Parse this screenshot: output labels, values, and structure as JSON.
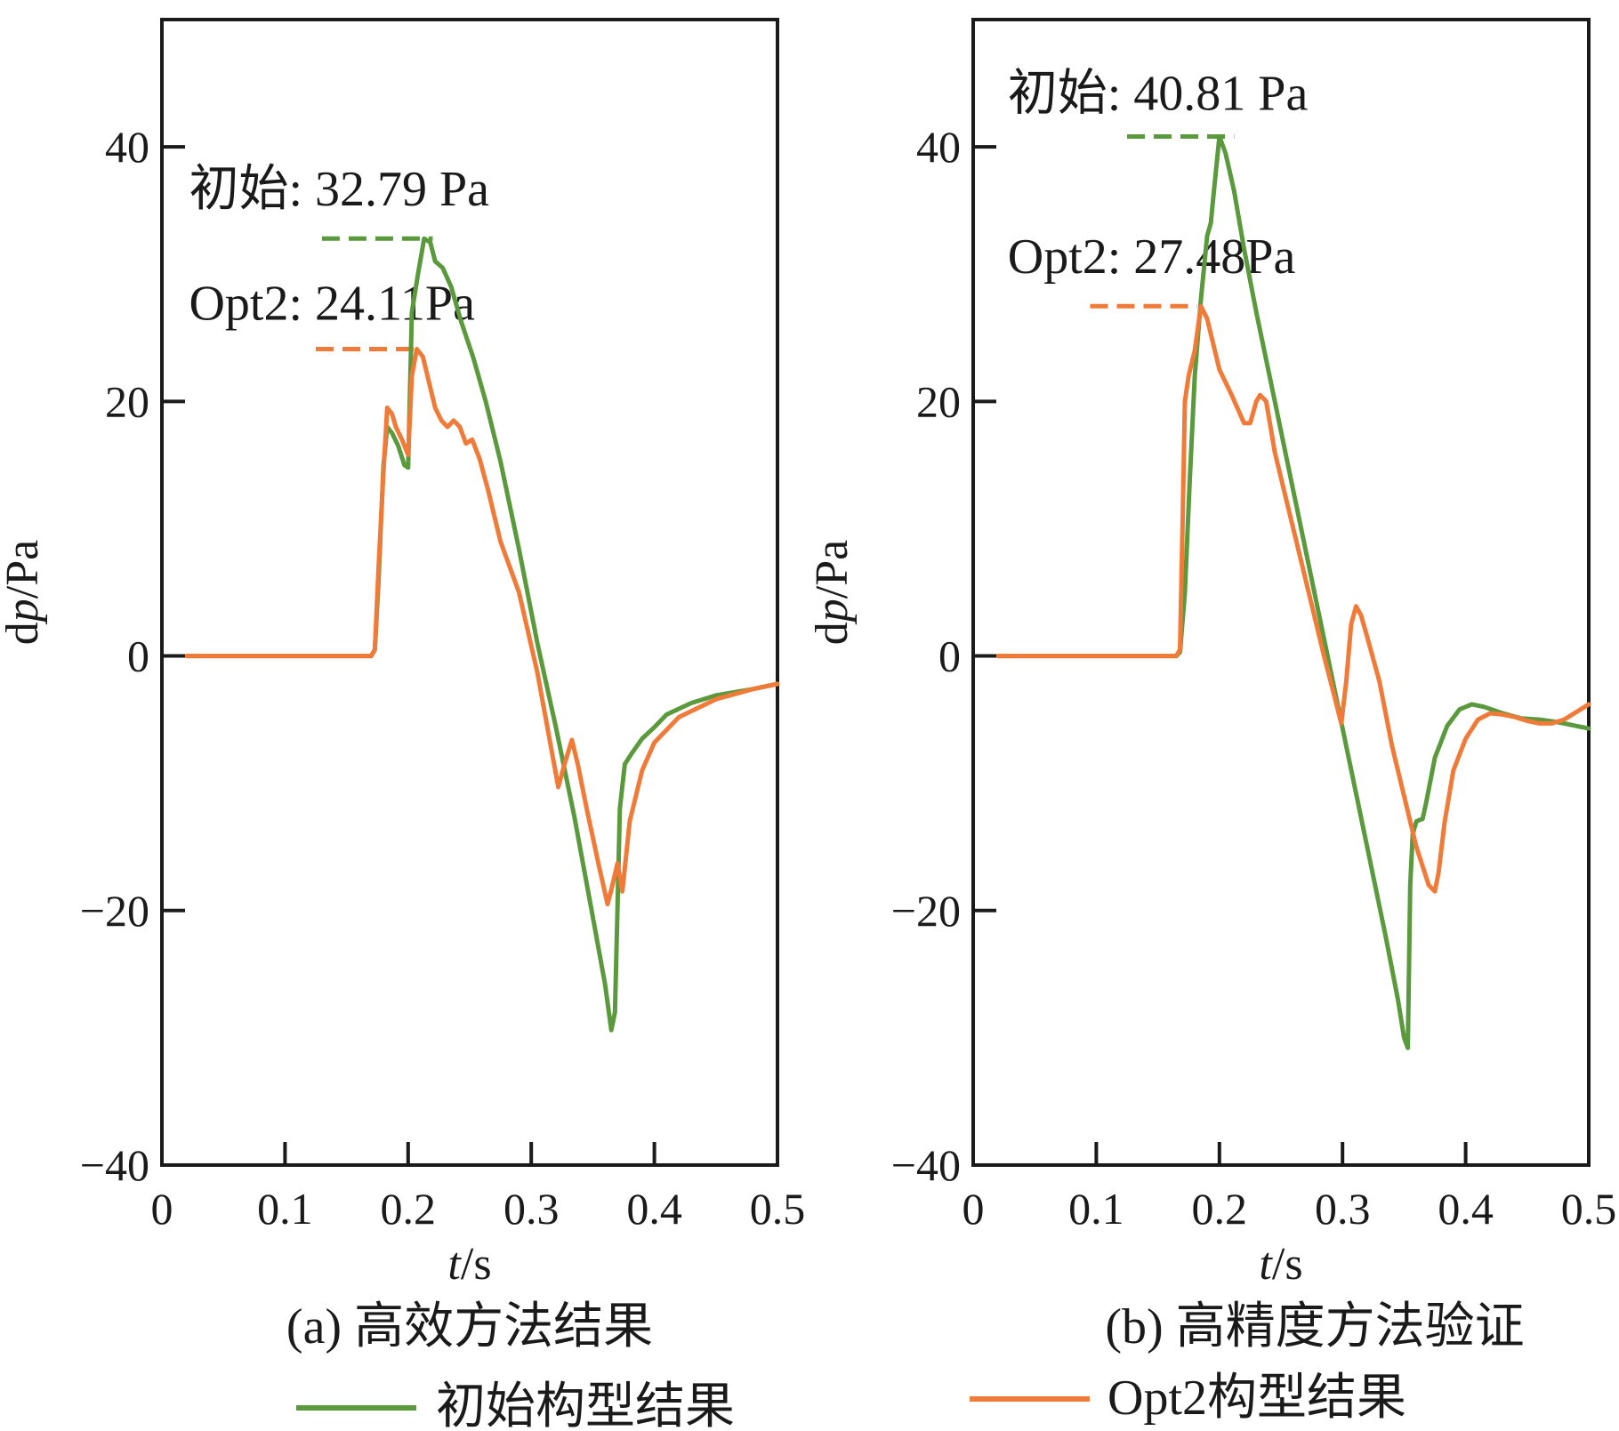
{
  "colors": {
    "initial": "#5a9a3c",
    "opt2": "#f07a38",
    "axis": "#1a1a1a"
  },
  "legend": {
    "initial_label": "初始构型结果",
    "opt2_label": "Opt2构型结果"
  },
  "chart_data": [
    {
      "type": "line",
      "id": "a",
      "caption": "(a) 高效方法结果",
      "xlabel_var": "t",
      "xlabel_unit": "/s",
      "ylabel_prefix": "d",
      "ylabel_var": "p",
      "ylabel_unit": "/Pa",
      "xlim": [
        0,
        0.5
      ],
      "ylim": [
        -40,
        50
      ],
      "xticks": [
        0,
        0.1,
        0.2,
        0.3,
        0.4,
        0.5
      ],
      "xtick_labels": [
        "0",
        "0.1",
        "0.2",
        "0.3",
        "0.4",
        "0.5"
      ],
      "yticks": [
        -40,
        -20,
        0,
        20,
        40
      ],
      "ytick_labels": [
        "−40",
        "−20",
        "0",
        "20",
        "40"
      ],
      "annotations": [
        {
          "prefix": "初始",
          "text": ": 32.79 Pa",
          "series": "initial",
          "value": 32.79,
          "x_range": [
            0.13,
            0.22
          ],
          "text_x": 0.022,
          "text_y": 35.4
        },
        {
          "prefix": "Opt2",
          "text": ": 24.11Pa",
          "series": "opt2",
          "value": 24.11,
          "x_range": [
            0.125,
            0.21
          ],
          "text_x": 0.022,
          "text_y": 26.4
        }
      ],
      "series": [
        {
          "name": "初始",
          "key": "initial",
          "points": [
            [
              0.02,
              0
            ],
            [
              0.17,
              0
            ],
            [
              0.173,
              0.5
            ],
            [
              0.176,
              6
            ],
            [
              0.18,
              15
            ],
            [
              0.183,
              18
            ],
            [
              0.187,
              17.5
            ],
            [
              0.192,
              16.5
            ],
            [
              0.197,
              15
            ],
            [
              0.2,
              14.8
            ],
            [
              0.203,
              27
            ],
            [
              0.208,
              30
            ],
            [
              0.213,
              32.79
            ],
            [
              0.218,
              32.5
            ],
            [
              0.222,
              31
            ],
            [
              0.228,
              30.5
            ],
            [
              0.235,
              29
            ],
            [
              0.243,
              26.3
            ],
            [
              0.253,
              23.4
            ],
            [
              0.263,
              20
            ],
            [
              0.275,
              15.3
            ],
            [
              0.29,
              8.4
            ],
            [
              0.305,
              1
            ],
            [
              0.32,
              -5.6
            ],
            [
              0.335,
              -12.6
            ],
            [
              0.35,
              -20.5
            ],
            [
              0.36,
              -25.8
            ],
            [
              0.365,
              -29.4
            ],
            [
              0.368,
              -28
            ],
            [
              0.37,
              -20
            ],
            [
              0.372,
              -12
            ],
            [
              0.376,
              -8.5
            ],
            [
              0.382,
              -7.6
            ],
            [
              0.39,
              -6.5
            ],
            [
              0.4,
              -5.6
            ],
            [
              0.41,
              -4.6
            ],
            [
              0.43,
              -3.7
            ],
            [
              0.45,
              -3.1
            ],
            [
              0.48,
              -2.6
            ],
            [
              0.5,
              -2.2
            ]
          ]
        },
        {
          "name": "Opt2",
          "key": "opt2",
          "points": [
            [
              0.02,
              0
            ],
            [
              0.17,
              0
            ],
            [
              0.173,
              0.5
            ],
            [
              0.176,
              7
            ],
            [
              0.18,
              14.5
            ],
            [
              0.183,
              19.5
            ],
            [
              0.187,
              19
            ],
            [
              0.19,
              18
            ],
            [
              0.195,
              17
            ],
            [
              0.2,
              15.8
            ],
            [
              0.203,
              22
            ],
            [
              0.207,
              24.11
            ],
            [
              0.212,
              23.5
            ],
            [
              0.217,
              21.5
            ],
            [
              0.222,
              19.5
            ],
            [
              0.227,
              18.5
            ],
            [
              0.232,
              18
            ],
            [
              0.237,
              18.5
            ],
            [
              0.242,
              18
            ],
            [
              0.247,
              16.7
            ],
            [
              0.252,
              17
            ],
            [
              0.258,
              15.5
            ],
            [
              0.265,
              13
            ],
            [
              0.275,
              9
            ],
            [
              0.29,
              5
            ],
            [
              0.305,
              -1.3
            ],
            [
              0.318,
              -8.2
            ],
            [
              0.322,
              -10.3
            ],
            [
              0.327,
              -8.5
            ],
            [
              0.333,
              -6.6
            ],
            [
              0.338,
              -8.6
            ],
            [
              0.345,
              -12
            ],
            [
              0.355,
              -16.5
            ],
            [
              0.362,
              -19.5
            ],
            [
              0.366,
              -18
            ],
            [
              0.37,
              -16.3
            ],
            [
              0.374,
              -18.5
            ],
            [
              0.38,
              -13
            ],
            [
              0.39,
              -9
            ],
            [
              0.4,
              -6.8
            ],
            [
              0.42,
              -4.8
            ],
            [
              0.45,
              -3.4
            ],
            [
              0.48,
              -2.6
            ],
            [
              0.5,
              -2.2
            ]
          ]
        }
      ]
    },
    {
      "type": "line",
      "id": "b",
      "caption": "(b) 高精度方法验证",
      "xlabel_var": "t",
      "xlabel_unit": "/s",
      "ylabel_prefix": "d",
      "ylabel_var": "p",
      "ylabel_unit": "/Pa",
      "xlim": [
        0,
        0.5
      ],
      "ylim": [
        -40,
        50
      ],
      "xticks": [
        0,
        0.1,
        0.2,
        0.3,
        0.4,
        0.5
      ],
      "xtick_labels": [
        "0",
        "0.1",
        "0.2",
        "0.3",
        "0.4",
        "0.5"
      ],
      "yticks": [
        -40,
        -20,
        0,
        20,
        40
      ],
      "ytick_labels": [
        "−40",
        "−20",
        "0",
        "20",
        "40"
      ],
      "annotations": [
        {
          "prefix": "初始",
          "text": ": 40.81 Pa",
          "series": "initial",
          "value": 40.81,
          "x_range": [
            0.125,
            0.212
          ],
          "text_x": 0.028,
          "text_y": 42.9
        },
        {
          "prefix": "Opt2",
          "text": ": 27.48Pa",
          "series": "opt2",
          "value": 27.48,
          "x_range": [
            0.095,
            0.182
          ],
          "text_x": 0.028,
          "text_y": 30.1
        }
      ],
      "series": [
        {
          "name": "初始",
          "key": "initial",
          "points": [
            [
              0.02,
              0
            ],
            [
              0.165,
              0
            ],
            [
              0.168,
              0.3
            ],
            [
              0.172,
              5
            ],
            [
              0.176,
              14
            ],
            [
              0.18,
              22
            ],
            [
              0.185,
              28
            ],
            [
              0.19,
              33
            ],
            [
              0.193,
              34
            ],
            [
              0.196,
              37
            ],
            [
              0.2,
              40.81
            ],
            [
              0.205,
              39.5
            ],
            [
              0.212,
              36.5
            ],
            [
              0.22,
              32
            ],
            [
              0.23,
              27
            ],
            [
              0.245,
              20
            ],
            [
              0.26,
              13
            ],
            [
              0.275,
              6
            ],
            [
              0.29,
              -1
            ],
            [
              0.305,
              -8
            ],
            [
              0.32,
              -15
            ],
            [
              0.335,
              -22
            ],
            [
              0.345,
              -27
            ],
            [
              0.35,
              -30
            ],
            [
              0.353,
              -30.8
            ],
            [
              0.355,
              -18
            ],
            [
              0.357,
              -14
            ],
            [
              0.36,
              -13
            ],
            [
              0.365,
              -12.8
            ],
            [
              0.368,
              -11.5
            ],
            [
              0.375,
              -8
            ],
            [
              0.385,
              -5.5
            ],
            [
              0.395,
              -4.2
            ],
            [
              0.405,
              -3.8
            ],
            [
              0.415,
              -4
            ],
            [
              0.43,
              -4.5
            ],
            [
              0.445,
              -4.9
            ],
            [
              0.46,
              -5
            ],
            [
              0.475,
              -5.2
            ],
            [
              0.49,
              -5.5
            ],
            [
              0.5,
              -5.7
            ]
          ]
        },
        {
          "name": "Opt2",
          "key": "opt2",
          "points": [
            [
              0.02,
              0
            ],
            [
              0.165,
              0
            ],
            [
              0.168,
              0.5
            ],
            [
              0.17,
              10
            ],
            [
              0.172,
              20
            ],
            [
              0.175,
              22
            ],
            [
              0.18,
              24
            ],
            [
              0.185,
              27.48
            ],
            [
              0.19,
              26.5
            ],
            [
              0.195,
              24.5
            ],
            [
              0.2,
              22.5
            ],
            [
              0.21,
              20.5
            ],
            [
              0.22,
              18.3
            ],
            [
              0.225,
              18.3
            ],
            [
              0.23,
              20
            ],
            [
              0.233,
              20.5
            ],
            [
              0.238,
              20
            ],
            [
              0.245,
              16
            ],
            [
              0.255,
              12
            ],
            [
              0.265,
              8
            ],
            [
              0.275,
              4
            ],
            [
              0.285,
              0
            ],
            [
              0.293,
              -3
            ],
            [
              0.299,
              -5.3
            ],
            [
              0.303,
              -2
            ],
            [
              0.307,
              2.5
            ],
            [
              0.311,
              3.9
            ],
            [
              0.315,
              3.2
            ],
            [
              0.32,
              1.5
            ],
            [
              0.33,
              -2
            ],
            [
              0.34,
              -7
            ],
            [
              0.35,
              -11
            ],
            [
              0.36,
              -15
            ],
            [
              0.37,
              -18
            ],
            [
              0.375,
              -18.5
            ],
            [
              0.378,
              -17
            ],
            [
              0.383,
              -13
            ],
            [
              0.39,
              -9
            ],
            [
              0.4,
              -6.5
            ],
            [
              0.41,
              -5
            ],
            [
              0.42,
              -4.5
            ],
            [
              0.43,
              -4.6
            ],
            [
              0.44,
              -4.8
            ],
            [
              0.45,
              -5.1
            ],
            [
              0.46,
              -5.3
            ],
            [
              0.47,
              -5.3
            ],
            [
              0.48,
              -5
            ],
            [
              0.49,
              -4.4
            ],
            [
              0.5,
              -3.8
            ]
          ]
        }
      ]
    }
  ]
}
